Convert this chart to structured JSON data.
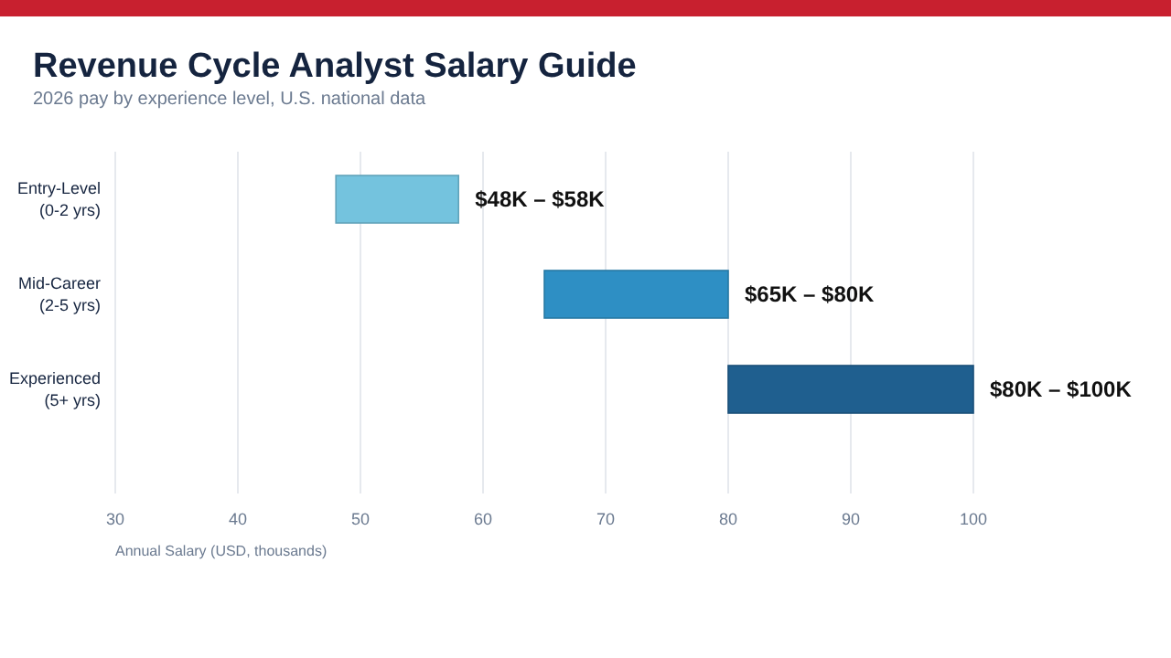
{
  "chart_data": {
    "type": "bar",
    "orientation": "horizontal",
    "title": "Revenue Cycle Analyst Salary Guide",
    "subtitle": "2026 pay by experience level, U.S. national data",
    "xlabel": "Annual Salary (USD, thousands)",
    "categories": [
      "Entry-Level\n(0-2 yrs)",
      "Mid-Career\n(2-5 yrs)",
      "Experienced\n(5+ yrs)"
    ],
    "base": [
      48,
      65,
      80
    ],
    "values": [
      10,
      15,
      20
    ],
    "colors": [
      "#74c3de",
      "#2e8fc4",
      "#1f5f8f"
    ],
    "annotations": [
      {
        "text": "$48K – $58K",
        "x": 58,
        "y": "Entry-Level\n(0-2 yrs)"
      },
      {
        "text": "$65K – $80K",
        "x": 80,
        "y": "Mid-Career\n(2-5 yrs)"
      },
      {
        "text": "$80K – $100K",
        "x": 100,
        "y": "Experienced\n(5+ yrs)"
      }
    ],
    "xlim": [
      30,
      100
    ],
    "xticks": [
      30,
      40,
      50,
      60,
      70,
      80,
      90,
      100
    ],
    "grid": "x"
  }
}
